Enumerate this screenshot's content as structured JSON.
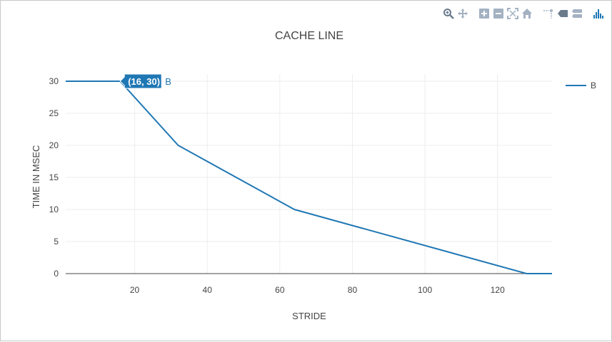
{
  "modebar": {
    "buttons": [
      {
        "name": "zoom-icon",
        "group": 1
      },
      {
        "name": "pan-icon",
        "group": 1
      },
      {
        "name": "zoom-in-icon",
        "group": 2
      },
      {
        "name": "zoom-out-icon",
        "group": 2
      },
      {
        "name": "autoscale-icon",
        "group": 2
      },
      {
        "name": "reset-axes-icon",
        "group": 2
      },
      {
        "name": "spike-lines-icon",
        "group": 3
      },
      {
        "name": "hover-closest-icon",
        "group": 3
      },
      {
        "name": "hover-compare-icon",
        "group": 3
      },
      {
        "name": "plotly-logo-icon",
        "group": 4
      }
    ],
    "accent": "#1f77b4",
    "icon_color": "#a3b1c2"
  },
  "chart_data": {
    "type": "line",
    "title": "CACHE LINE",
    "xlabel": "STRIDE",
    "ylabel": "TIME IN MSEC",
    "xlim": [
      1,
      135
    ],
    "ylim": [
      0,
      30
    ],
    "x_ticks": [
      20,
      40,
      60,
      80,
      100,
      120
    ],
    "y_ticks": [
      0,
      5,
      10,
      15,
      20,
      25,
      30
    ],
    "grid": true,
    "legend_position": "top-right",
    "series": [
      {
        "name": "B",
        "color": "#1f77b4",
        "x": [
          1,
          2,
          4,
          8,
          16,
          32,
          64,
          128,
          135
        ],
        "y": [
          30,
          30,
          30,
          30,
          30,
          20,
          10,
          0,
          0
        ]
      }
    ],
    "hover": {
      "label": "(16, 30)",
      "series": "B",
      "x": 16,
      "y": 30
    }
  }
}
